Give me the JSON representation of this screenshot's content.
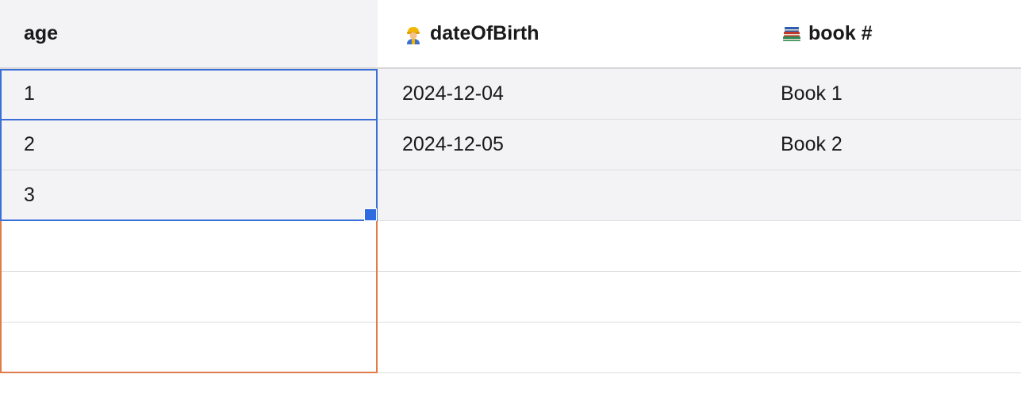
{
  "columns": [
    {
      "label": "age",
      "icon": ""
    },
    {
      "label": "dateOfBirth",
      "icon": "construction-worker-icon"
    },
    {
      "label": "book #",
      "icon": "books-icon"
    }
  ],
  "rows": [
    {
      "age": "1",
      "dateOfBirth": "2024-12-04",
      "book": "Book 1"
    },
    {
      "age": "2",
      "dateOfBirth": "2024-12-05",
      "book": "Book 2"
    },
    {
      "age": "3",
      "dateOfBirth": "",
      "book": ""
    },
    {
      "age": "",
      "dateOfBirth": "",
      "book": ""
    },
    {
      "age": "",
      "dateOfBirth": "",
      "book": ""
    },
    {
      "age": "",
      "dateOfBirth": "",
      "book": ""
    }
  ],
  "colors": {
    "selection": "#3a6fd8",
    "fill_range": "#e07b4a",
    "fill_handle": "#2f6be0",
    "header_bg": "#f3f3f5",
    "row_bg": "#f3f3f5"
  }
}
